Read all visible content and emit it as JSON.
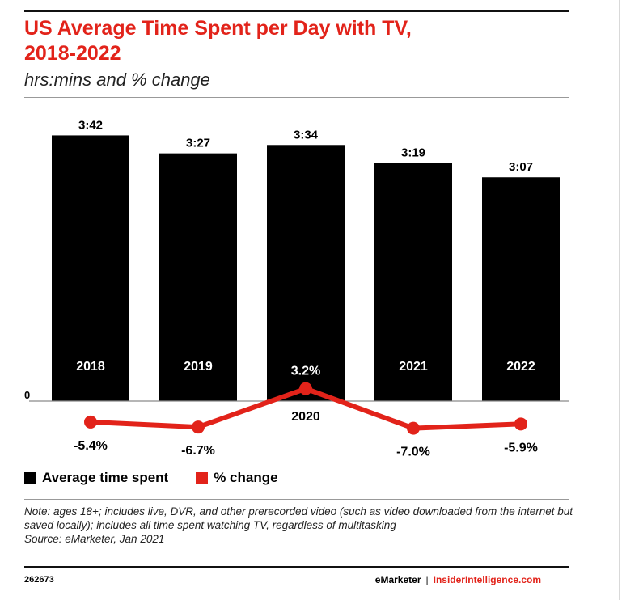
{
  "header": {
    "title_line1": "US Average Time Spent per Day with TV,",
    "title_line2": "2018-2022",
    "subtitle": "hrs:mins and % change"
  },
  "chart_data": {
    "type": "bar",
    "title": "US Average Time Spent per Day with TV, 2018-2022",
    "subtitle": "hrs:mins and % change",
    "categories": [
      "2018",
      "2019",
      "2020",
      "2021",
      "2022"
    ],
    "zero_label": "0",
    "series": [
      {
        "name": "Average time spent",
        "type": "bar",
        "color": "#000000",
        "values": [
          222,
          207,
          214,
          199,
          187
        ],
        "labels": [
          "3:42",
          "3:27",
          "3:34",
          "3:19",
          "3:07"
        ]
      },
      {
        "name": "% change",
        "type": "line",
        "color": "#e2231a",
        "values": [
          -5.4,
          -6.7,
          3.2,
          -7.0,
          -5.9
        ],
        "labels": [
          "-5.4%",
          "-6.7%",
          "3.2%",
          "-7.0%",
          "-5.9%"
        ]
      }
    ],
    "grid": false,
    "legend_position": "bottom-left"
  },
  "legend": {
    "items": [
      {
        "label": "Average time spent",
        "color": "#000000"
      },
      {
        "label": "% change",
        "color": "#e2231a"
      }
    ]
  },
  "footer": {
    "note": "Note: ages 18+; includes live, DVR, and other prerecorded video (such as video downloaded from the internet but saved locally); includes all time spent watching TV, regardless of multitasking",
    "source": "Source: eMarketer, Jan 2021",
    "chart_id": "262673",
    "brand_primary": "eMarketer",
    "brand_separator": "|",
    "brand_secondary": "InsiderIntelligence.com"
  }
}
